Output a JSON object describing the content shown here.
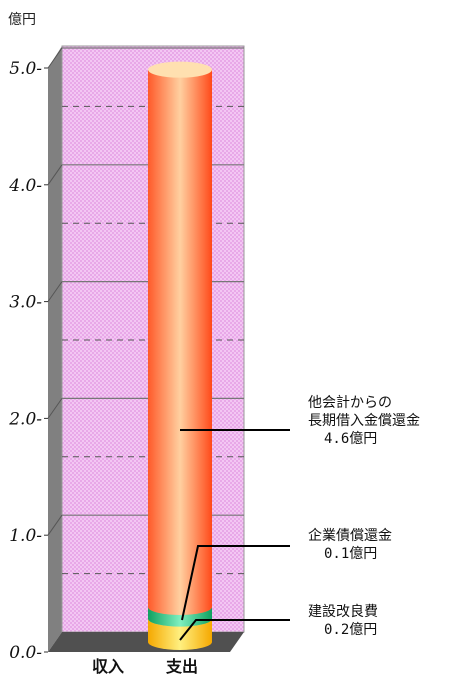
{
  "colors": {
    "plot_fill": "#f3c6f3",
    "plot_dot": "#e8a8e8",
    "wall_left": "#808080",
    "floor": "#505050",
    "bar_main": "#ff5a2a",
    "bar_main_highlight": "#ffd0a0",
    "bar_debt": "#22bb77",
    "bar_improve": "#ffc20e"
  },
  "chart_data": {
    "type": "bar",
    "stacked": true,
    "unit_label": "億円",
    "categories": [
      "収入",
      "支出"
    ],
    "ylim": [
      0,
      5
    ],
    "yticks": [
      "0.0",
      "1.0",
      "2.0",
      "3.0",
      "4.0",
      "5.0"
    ],
    "grid": true,
    "series": [
      {
        "name": "建設改良費",
        "values": [
          0,
          0.2
        ],
        "label_value": "0.2億円",
        "color": "#ffc20e"
      },
      {
        "name": "企業債償還金",
        "values": [
          0,
          0.1
        ],
        "label_value": "0.1億円",
        "color": "#22bb77"
      },
      {
        "name": "他会計からの長期借入金償還金",
        "values": [
          0,
          4.6
        ],
        "label_value": "4.6億円",
        "color": "#ff5a2a"
      }
    ],
    "annotations": [
      {
        "lines": [
          "他会計からの",
          "長期借入金償還金"
        ],
        "value": "4.6億円"
      },
      {
        "lines": [
          "企業債償還金"
        ],
        "value": "0.1億円"
      },
      {
        "lines": [
          "建設改良費"
        ],
        "value": "0.2億円"
      }
    ]
  }
}
